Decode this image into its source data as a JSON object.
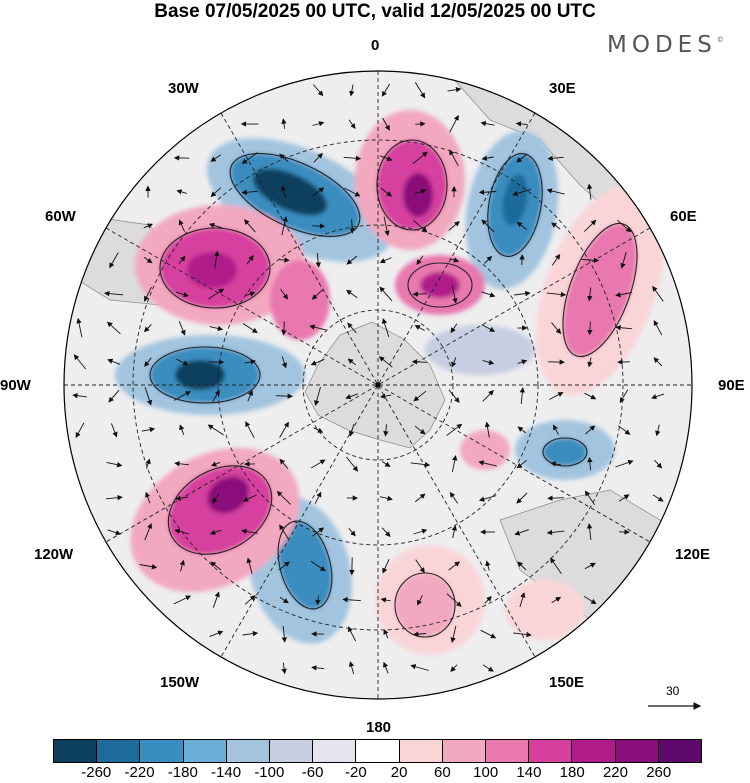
{
  "title": "Base 07/05/2025 00 UTC, valid 12/05/2025 00 UTC",
  "brand": "MODES",
  "brand_mark": "©",
  "meridian_labels": {
    "n0": "0",
    "w30": "30W",
    "e30": "30E",
    "w60": "60W",
    "e60": "60E",
    "w90": "90W",
    "e90": "90E",
    "w120": "120W",
    "e120": "120E",
    "w150": "150W",
    "e150": "150E",
    "s180": "180"
  },
  "vector_reference": "30",
  "colorbar": {
    "colors": [
      "#0d3f5e",
      "#1c6b9a",
      "#3a8dc0",
      "#6aaed5",
      "#a3c4df",
      "#c7cee2",
      "#e4e3ee",
      "#ffffff",
      "#f9d5d7",
      "#f2a8bf",
      "#e878ad",
      "#d63f9e",
      "#b01c8a",
      "#8a0f7a",
      "#5e0a6b"
    ],
    "tick_labels": [
      "-260",
      "-220",
      "-180",
      "-140",
      "-100",
      "-60",
      "-20",
      "20",
      "60",
      "100",
      "140",
      "180",
      "220",
      "260"
    ]
  }
}
